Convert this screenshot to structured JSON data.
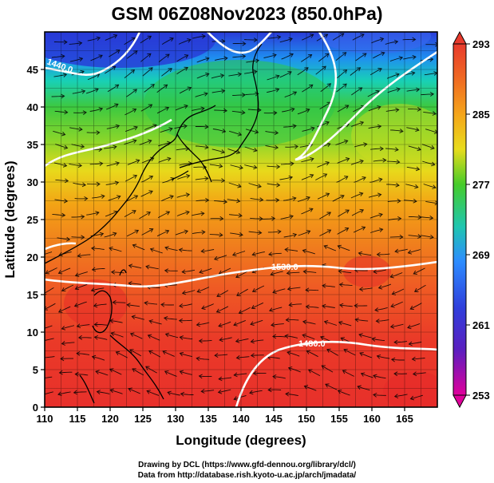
{
  "title": "GSM 06Z08Nov2023 (850.0hPa)",
  "map": {
    "x_axis": {
      "label": "Longitude (degrees)",
      "ticks": [
        "110",
        "115",
        "120",
        "125",
        "130",
        "135",
        "140",
        "145",
        "150",
        "155",
        "160",
        "165"
      ],
      "range": [
        110,
        170
      ]
    },
    "y_axis": {
      "label": "Latitude  (degrees)",
      "ticks": [
        "0",
        "5",
        "10",
        "15",
        "20",
        "25",
        "30",
        "35",
        "40",
        "45"
      ],
      "range": [
        0,
        50
      ]
    },
    "contour_labels": [
      "1440.0",
      "1530.0",
      "1480.0"
    ],
    "field": "temperature (shaded) with geopotential height contours and wind streamlines"
  },
  "colorbar": {
    "ticks": [
      "293",
      "285",
      "277",
      "269",
      "261",
      "253"
    ],
    "min": 253,
    "max": 293,
    "colors": [
      "#e0009b",
      "#3a2bd0",
      "#2f8bff",
      "#16d7c5",
      "#3fcf2f",
      "#c4e01e",
      "#f2a012",
      "#f05a1e",
      "#e81e1e"
    ]
  },
  "footer": {
    "line1": "Drawing by DCL (https://www.gfd-dennou.org/library/dcl/)",
    "line2": "Data from http://database.rish.kyoto-u.ac.jp/arch/jmadata/"
  }
}
